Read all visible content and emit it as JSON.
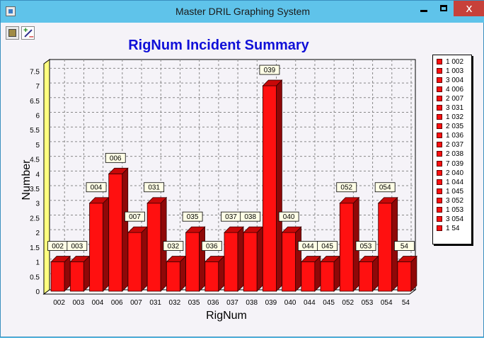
{
  "window": {
    "title": "Master DRIL Graphing System",
    "close_label": "x"
  },
  "toolbar": {
    "tools": [
      "chart-icon",
      "plus-minus-icon"
    ]
  },
  "chart_data": {
    "type": "bar",
    "title": "RigNum Incident Summary",
    "xlabel": "RigNum",
    "ylabel": "Number",
    "ylim": [
      0,
      7.75
    ],
    "yticks": [
      "0",
      "0.5",
      "1",
      "1.5",
      "2",
      "2.5",
      "3",
      "3.5",
      "4",
      "4.5",
      "5",
      "5.5",
      "6",
      "6.5",
      "7",
      "7.5"
    ],
    "grid": true,
    "legend_position": "right",
    "categories": [
      "002",
      "003",
      "004",
      "006",
      "007",
      "031",
      "032",
      "035",
      "036",
      "037",
      "038",
      "039",
      "040",
      "044",
      "045",
      "052",
      "053",
      "054",
      "54"
    ],
    "values": [
      1,
      1,
      3,
      4,
      2,
      3,
      1,
      2,
      1,
      2,
      2,
      7,
      2,
      1,
      1,
      3,
      1,
      3,
      1
    ],
    "data_labels": [
      "002",
      "003",
      "004",
      "006",
      "007",
      "031",
      "032",
      "035",
      "036",
      "037",
      "038",
      "039",
      "040",
      "044",
      "045",
      "052",
      "053",
      "054",
      "54"
    ],
    "legend": [
      "1 002",
      "1 003",
      "3 004",
      "4 006",
      "2 007",
      "3 031",
      "1 032",
      "2 035",
      "1 036",
      "2 037",
      "2 038",
      "7 039",
      "2 040",
      "1 044",
      "1 045",
      "3 052",
      "1 053",
      "3 054",
      "1 54"
    ],
    "colors": {
      "bar_front": "#ff1010",
      "bar_side": "#8f0808",
      "bar_top": "#c80808",
      "title": "#1010d8",
      "wall": "#ffff80"
    }
  }
}
